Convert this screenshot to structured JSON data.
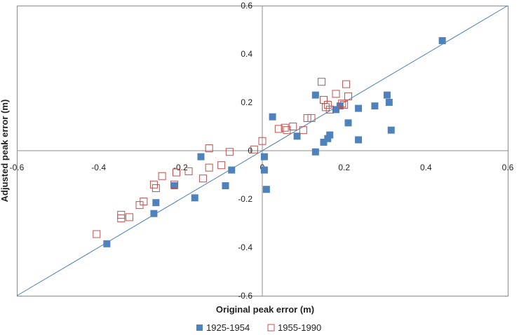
{
  "chart_data": {
    "type": "scatter",
    "title": "",
    "xlabel": "Original peak error (m)",
    "ylabel": "Adjusted peak error (m)",
    "xlim": [
      -0.6,
      0.6
    ],
    "ylim": [
      -0.6,
      0.6
    ],
    "x_ticks": [
      "-0.6",
      "-0.4",
      "-0.2",
      "0",
      "0.2",
      "0.4",
      "0.6"
    ],
    "y_ticks": [
      "0.6",
      "0.4",
      "0.2",
      "0",
      "-0.2",
      "-0.4",
      "-0.6"
    ],
    "grid": false,
    "legend_position": "bottom",
    "reference_line": {
      "type": "1:1",
      "color": "#4a7ebb"
    },
    "series": [
      {
        "name": "1925-1954",
        "marker": "filled-square",
        "color": "#4f81bd",
        "points": [
          [
            0.44,
            0.455
          ],
          [
            -0.38,
            -0.385
          ],
          [
            -0.265,
            -0.26
          ],
          [
            -0.26,
            -0.215
          ],
          [
            -0.165,
            -0.195
          ],
          [
            -0.215,
            -0.145
          ],
          [
            -0.15,
            -0.025
          ],
          [
            -0.09,
            -0.145
          ],
          [
            -0.075,
            -0.08
          ],
          [
            0.005,
            -0.025
          ],
          [
            0.005,
            -0.08
          ],
          [
            0.01,
            -0.16
          ],
          [
            0.025,
            0.14
          ],
          [
            0.085,
            0.06
          ],
          [
            0.13,
            0.23
          ],
          [
            0.13,
            -0.005
          ],
          [
            0.15,
            0.035
          ],
          [
            0.16,
            0.05
          ],
          [
            0.165,
            0.065
          ],
          [
            0.18,
            0.17
          ],
          [
            0.19,
            0.185
          ],
          [
            0.21,
            0.115
          ],
          [
            0.235,
            0.175
          ],
          [
            0.235,
            0.045
          ],
          [
            0.275,
            0.185
          ],
          [
            0.305,
            0.23
          ],
          [
            0.31,
            0.2
          ],
          [
            0.315,
            0.085
          ]
        ]
      },
      {
        "name": "1955-1990",
        "marker": "hollow-square",
        "color": "#c0504d",
        "points": [
          [
            -0.405,
            -0.345
          ],
          [
            -0.345,
            -0.265
          ],
          [
            -0.345,
            -0.28
          ],
          [
            -0.325,
            -0.275
          ],
          [
            -0.3,
            -0.225
          ],
          [
            -0.29,
            -0.21
          ],
          [
            -0.265,
            -0.14
          ],
          [
            -0.26,
            -0.155
          ],
          [
            -0.245,
            -0.105
          ],
          [
            -0.215,
            -0.14
          ],
          [
            -0.21,
            -0.09
          ],
          [
            -0.18,
            -0.085
          ],
          [
            -0.145,
            -0.115
          ],
          [
            -0.13,
            0.01
          ],
          [
            -0.13,
            -0.07
          ],
          [
            -0.1,
            -0.06
          ],
          [
            -0.08,
            -0.005
          ],
          [
            -0.02,
            0.005
          ],
          [
            0.0,
            0.04
          ],
          [
            0.04,
            0.09
          ],
          [
            0.055,
            0.095
          ],
          [
            0.06,
            0.085
          ],
          [
            0.075,
            0.1
          ],
          [
            0.1,
            0.085
          ],
          [
            0.11,
            0.135
          ],
          [
            0.12,
            0.135
          ],
          [
            0.145,
            0.285
          ],
          [
            0.15,
            0.21
          ],
          [
            0.155,
            0.18
          ],
          [
            0.16,
            0.19
          ],
          [
            0.165,
            0.17
          ],
          [
            0.18,
            0.235
          ],
          [
            0.195,
            0.195
          ],
          [
            0.2,
            0.19
          ],
          [
            0.205,
            0.275
          ],
          [
            0.21,
            0.225
          ]
        ]
      }
    ]
  }
}
